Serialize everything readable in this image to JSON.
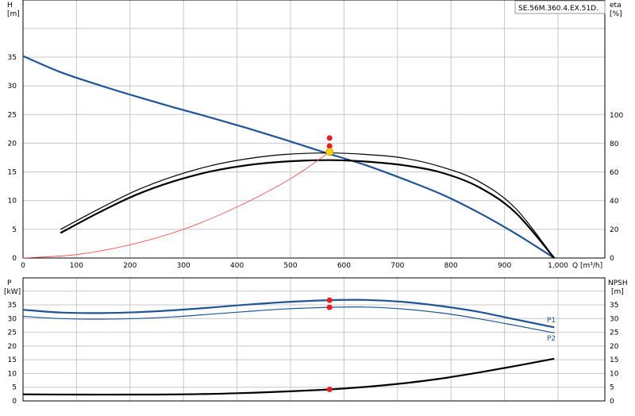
{
  "model_label": "SE.56M.360.4.EX.51D.",
  "colors": {
    "head": "#1f5596",
    "eta_outline": "#000000",
    "system": "#ff3b3b",
    "dot": "#ee1c1c",
    "dot_yellow": "#f7d400",
    "power": "#1f5596",
    "npsh": "#000000"
  },
  "chart_data": [
    {
      "id": "top",
      "type": "line",
      "xlabel": "Q [m³/h]",
      "xlim": [
        0,
        1000
      ],
      "xticks": [
        0,
        100,
        200,
        300,
        400,
        500,
        600,
        700,
        800,
        900,
        1000
      ],
      "xtick_labels": [
        "0",
        "100",
        "200",
        "300",
        "400",
        "500",
        "600",
        "700",
        "800",
        "900",
        "1,000"
      ],
      "left_axis": {
        "label": "H",
        "unit": "[m]",
        "lim": [
          0,
          40
        ],
        "ticks": [
          0,
          5,
          10,
          15,
          20,
          25,
          30,
          35
        ]
      },
      "right_axis": {
        "label": "eta",
        "unit": "[%]",
        "lim": [
          0,
          140
        ],
        "ticks": [
          0,
          20,
          40,
          60,
          80,
          100
        ]
      },
      "series": [
        {
          "key": "head",
          "axis": "left",
          "x": [
            0,
            70,
            140,
            210,
            280,
            350,
            420,
            490,
            560,
            640,
            710,
            780,
            850,
            920,
            993
          ],
          "y": [
            35.2,
            32.4,
            30.2,
            28.2,
            26.3,
            24.5,
            22.6,
            20.6,
            18.5,
            16.2,
            13.8,
            11.2,
            8.0,
            4.3,
            0
          ]
        },
        {
          "key": "eta_outer",
          "axis": "right",
          "x": [
            70,
            140,
            210,
            280,
            350,
            420,
            490,
            573,
            640,
            710,
            780,
            850,
            920,
            993
          ],
          "y": [
            20,
            34,
            47,
            57,
            64.5,
            69.5,
            72.5,
            73.5,
            72.5,
            70,
            64,
            54,
            35,
            0
          ]
        },
        {
          "key": "eta_inner",
          "axis": "right",
          "x": [
            70,
            140,
            210,
            280,
            350,
            420,
            490,
            573,
            640,
            710,
            780,
            850,
            920,
            993
          ],
          "y": [
            17.5,
            31.5,
            44,
            53.5,
            60.5,
            65,
            67.5,
            68.5,
            67.5,
            65,
            60,
            50,
            32,
            0
          ]
        },
        {
          "key": "system",
          "axis": "left",
          "x": [
            0,
            100,
            200,
            300,
            400,
            500,
            573
          ],
          "y": [
            0,
            0.6,
            2.3,
            5.0,
            8.9,
            13.8,
            18.5
          ]
        }
      ],
      "markers": [
        {
          "x": 573,
          "y": 20.9,
          "axis": "left",
          "color": "dot"
        },
        {
          "x": 573,
          "y": 19.5,
          "axis": "left",
          "color": "dot"
        },
        {
          "x": 573,
          "y": 18.5,
          "axis": "left",
          "color": "dot_yellow"
        }
      ]
    },
    {
      "id": "bottom",
      "type": "line",
      "xlim": [
        0,
        1000
      ],
      "xticks": [
        0,
        100,
        200,
        300,
        400,
        500,
        600,
        700,
        800,
        900,
        1000
      ],
      "left_axis": {
        "label": "P",
        "unit": "[kW]",
        "lim": [
          0,
          40
        ],
        "ticks": [
          0,
          5,
          10,
          15,
          20,
          25,
          30,
          35
        ]
      },
      "right_axis": {
        "label": "NPSH",
        "unit": "[m]",
        "lim": [
          0,
          40
        ],
        "ticks": [
          0,
          5,
          10,
          15,
          20,
          25,
          30,
          35
        ]
      },
      "series": [
        {
          "key": "P1",
          "name": "P1",
          "axis": "left",
          "x": [
            0,
            70,
            140,
            210,
            280,
            350,
            420,
            490,
            573,
            640,
            710,
            780,
            850,
            920,
            993
          ],
          "y": [
            33.2,
            32.2,
            32.0,
            32.3,
            33.0,
            34.0,
            35.1,
            36.0,
            36.7,
            36.8,
            36.1,
            34.6,
            32.5,
            29.7,
            26.8
          ]
        },
        {
          "key": "P2",
          "name": "P2",
          "axis": "left",
          "x": [
            0,
            70,
            140,
            210,
            280,
            350,
            420,
            490,
            573,
            640,
            710,
            780,
            850,
            920,
            993
          ],
          "y": [
            30.8,
            30.0,
            29.8,
            30.0,
            30.6,
            31.6,
            32.6,
            33.5,
            34.1,
            34.2,
            33.5,
            32.1,
            30.0,
            27.5,
            24.8
          ]
        },
        {
          "key": "npsh",
          "axis": "right",
          "x": [
            0,
            100,
            200,
            300,
            400,
            500,
            573,
            640,
            710,
            780,
            850,
            920,
            993
          ],
          "y": [
            2.4,
            2.3,
            2.3,
            2.4,
            2.8,
            3.5,
            4.2,
            5.1,
            6.4,
            8.1,
            10.3,
            12.7,
            15.4
          ]
        }
      ],
      "markers": [
        {
          "x": 573,
          "y": 36.7,
          "axis": "left",
          "color": "dot"
        },
        {
          "x": 573,
          "y": 34.1,
          "axis": "left",
          "color": "dot"
        },
        {
          "x": 573,
          "y": 4.2,
          "axis": "right",
          "color": "dot"
        }
      ]
    }
  ]
}
